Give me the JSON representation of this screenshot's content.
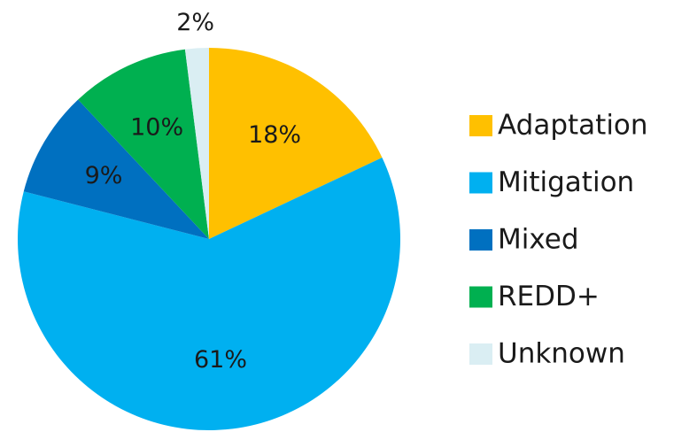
{
  "chart_data": {
    "type": "pie",
    "categories": [
      "Adaptation",
      "Mitigation",
      "Mixed",
      "REDD+",
      "Unknown"
    ],
    "values": [
      18,
      61,
      9,
      10,
      2
    ],
    "value_labels": [
      "18%",
      "61%",
      "9%",
      "10%",
      "2%"
    ],
    "colors": [
      "#FFC000",
      "#00B0F0",
      "#0070C0",
      "#00B050",
      "#DAEEF3"
    ],
    "legend": "right"
  }
}
